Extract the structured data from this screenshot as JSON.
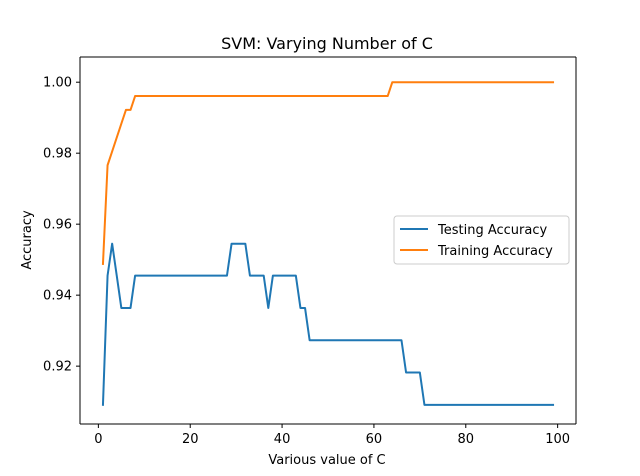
{
  "chart_data": {
    "type": "line",
    "title": "SVM: Varying Number of C",
    "xlabel": "Various value of C",
    "ylabel": "Accuracy",
    "xlim": [
      -4,
      104
    ],
    "ylim": [
      0.9037,
      1.0071
    ],
    "xticks": [
      0,
      20,
      40,
      60,
      80,
      100
    ],
    "xtick_labels": [
      "0",
      "20",
      "40",
      "60",
      "80",
      "100"
    ],
    "yticks": [
      0.92,
      0.94,
      0.96,
      0.98,
      1.0
    ],
    "ytick_labels": [
      "0.92",
      "0.94",
      "0.96",
      "0.98",
      "1.00"
    ],
    "grid": false,
    "legend_position": "center-right",
    "series": [
      {
        "name": "Testing Accuracy",
        "color": "#1f77b4",
        "x": [
          1,
          2,
          3,
          4,
          5,
          6,
          7,
          8,
          9,
          28,
          29,
          30,
          31,
          32,
          33,
          36,
          37,
          38,
          43,
          44,
          45,
          46,
          66,
          67,
          68,
          69,
          70,
          71,
          99
        ],
        "y": [
          0.9091,
          0.9455,
          0.9545,
          0.9455,
          0.9364,
          0.9364,
          0.9364,
          0.9455,
          0.9455,
          0.9455,
          0.9545,
          0.9545,
          0.9545,
          0.9545,
          0.9455,
          0.9455,
          0.9364,
          0.9455,
          0.9455,
          0.9364,
          0.9364,
          0.9273,
          0.9273,
          0.9182,
          0.9182,
          0.9182,
          0.9182,
          0.9091,
          0.9091
        ]
      },
      {
        "name": "Training Accuracy",
        "color": "#ff7f0e",
        "x": [
          1,
          2,
          3,
          4,
          5,
          6,
          7,
          8,
          9,
          63,
          64,
          65,
          99
        ],
        "y": [
          0.9488,
          0.9766,
          0.9805,
          0.9844,
          0.9883,
          0.9922,
          0.9922,
          0.9961,
          0.9961,
          0.9961,
          1.0,
          1.0,
          1.0
        ]
      }
    ]
  }
}
